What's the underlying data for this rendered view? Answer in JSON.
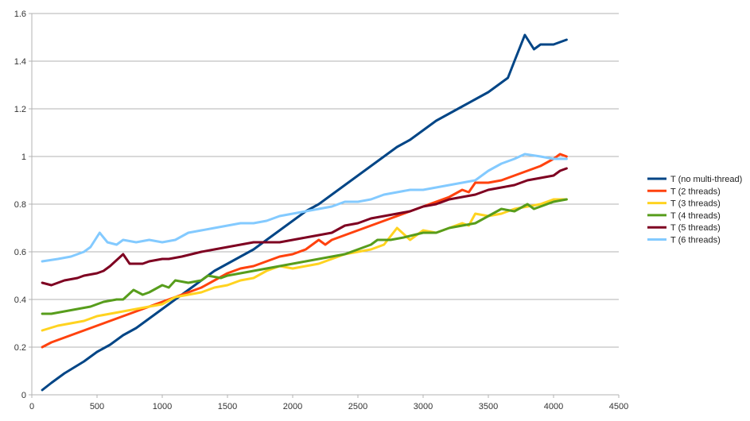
{
  "chart_data": {
    "type": "line",
    "title": "",
    "xlabel": "",
    "ylabel": "",
    "xlim": [
      0,
      4500
    ],
    "ylim": [
      0,
      1.6
    ],
    "xticks": [
      0,
      500,
      1000,
      1500,
      2000,
      2500,
      3000,
      3500,
      4000,
      4500
    ],
    "yticks": [
      0,
      0.2,
      0.4,
      0.6,
      0.8,
      1,
      1.2,
      1.4,
      1.6
    ],
    "xtick_labels": [
      "0",
      "500",
      "1000",
      "1500",
      "2000",
      "2500",
      "3000",
      "3500",
      "4000",
      "4500"
    ],
    "ytick_labels": [
      "0",
      "0.2",
      "0.4",
      "0.6",
      "0.8",
      "1",
      "1.2",
      "1.4",
      "1.6"
    ],
    "grid": "horizontal",
    "legend_position": "right",
    "x": [
      100,
      500,
      1000,
      1500,
      2000,
      2500,
      3000,
      3500,
      3600,
      3700,
      3780,
      3850,
      3900,
      4000,
      4100
    ],
    "series": [
      {
        "name": "T (no multi-thread)",
        "color": "#004586",
        "points": [
          [
            80,
            0.02
          ],
          [
            150,
            0.05
          ],
          [
            250,
            0.09
          ],
          [
            400,
            0.14
          ],
          [
            500,
            0.18
          ],
          [
            600,
            0.21
          ],
          [
            700,
            0.25
          ],
          [
            800,
            0.28
          ],
          [
            850,
            0.3
          ],
          [
            950,
            0.34
          ],
          [
            1050,
            0.38
          ],
          [
            1150,
            0.42
          ],
          [
            1250,
            0.46
          ],
          [
            1350,
            0.5
          ],
          [
            1400,
            0.52
          ],
          [
            1500,
            0.55
          ],
          [
            1600,
            0.58
          ],
          [
            1700,
            0.61
          ],
          [
            1800,
            0.65
          ],
          [
            1900,
            0.69
          ],
          [
            2000,
            0.73
          ],
          [
            2100,
            0.77
          ],
          [
            2200,
            0.8
          ],
          [
            2300,
            0.84
          ],
          [
            2400,
            0.88
          ],
          [
            2500,
            0.92
          ],
          [
            2600,
            0.96
          ],
          [
            2700,
            1.0
          ],
          [
            2800,
            1.04
          ],
          [
            2900,
            1.07
          ],
          [
            3000,
            1.11
          ],
          [
            3100,
            1.15
          ],
          [
            3200,
            1.18
          ],
          [
            3300,
            1.21
          ],
          [
            3400,
            1.24
          ],
          [
            3500,
            1.27
          ],
          [
            3600,
            1.31
          ],
          [
            3650,
            1.33
          ],
          [
            3700,
            1.4
          ],
          [
            3780,
            1.51
          ],
          [
            3850,
            1.45
          ],
          [
            3900,
            1.47
          ],
          [
            4000,
            1.47
          ],
          [
            4050,
            1.48
          ],
          [
            4100,
            1.49
          ]
        ]
      },
      {
        "name": "T (2 threads)",
        "color": "#ff420e",
        "points": [
          [
            80,
            0.2
          ],
          [
            150,
            0.22
          ],
          [
            300,
            0.25
          ],
          [
            400,
            0.27
          ],
          [
            500,
            0.29
          ],
          [
            600,
            0.31
          ],
          [
            700,
            0.33
          ],
          [
            800,
            0.35
          ],
          [
            900,
            0.37
          ],
          [
            1000,
            0.39
          ],
          [
            1100,
            0.41
          ],
          [
            1200,
            0.43
          ],
          [
            1300,
            0.45
          ],
          [
            1400,
            0.48
          ],
          [
            1500,
            0.51
          ],
          [
            1600,
            0.53
          ],
          [
            1700,
            0.54
          ],
          [
            1800,
            0.56
          ],
          [
            1900,
            0.58
          ],
          [
            2000,
            0.59
          ],
          [
            2100,
            0.61
          ],
          [
            2200,
            0.65
          ],
          [
            2250,
            0.63
          ],
          [
            2300,
            0.65
          ],
          [
            2400,
            0.67
          ],
          [
            2500,
            0.69
          ],
          [
            2600,
            0.71
          ],
          [
            2700,
            0.73
          ],
          [
            2800,
            0.75
          ],
          [
            2900,
            0.77
          ],
          [
            3000,
            0.79
          ],
          [
            3100,
            0.81
          ],
          [
            3200,
            0.83
          ],
          [
            3300,
            0.86
          ],
          [
            3350,
            0.85
          ],
          [
            3400,
            0.89
          ],
          [
            3500,
            0.89
          ],
          [
            3600,
            0.9
          ],
          [
            3700,
            0.92
          ],
          [
            3800,
            0.94
          ],
          [
            3900,
            0.96
          ],
          [
            4000,
            0.99
          ],
          [
            4050,
            1.01
          ],
          [
            4100,
            1.0
          ]
        ]
      },
      {
        "name": "T (3 threads)",
        "color": "#ffd320",
        "points": [
          [
            80,
            0.27
          ],
          [
            200,
            0.29
          ],
          [
            300,
            0.3
          ],
          [
            400,
            0.31
          ],
          [
            500,
            0.33
          ],
          [
            600,
            0.34
          ],
          [
            700,
            0.35
          ],
          [
            800,
            0.36
          ],
          [
            900,
            0.37
          ],
          [
            1000,
            0.38
          ],
          [
            1100,
            0.41
          ],
          [
            1200,
            0.42
          ],
          [
            1300,
            0.43
          ],
          [
            1400,
            0.45
          ],
          [
            1500,
            0.46
          ],
          [
            1600,
            0.48
          ],
          [
            1700,
            0.49
          ],
          [
            1800,
            0.52
          ],
          [
            1850,
            0.53
          ],
          [
            1900,
            0.54
          ],
          [
            2000,
            0.53
          ],
          [
            2100,
            0.54
          ],
          [
            2200,
            0.55
          ],
          [
            2300,
            0.57
          ],
          [
            2400,
            0.59
          ],
          [
            2500,
            0.6
          ],
          [
            2600,
            0.61
          ],
          [
            2700,
            0.63
          ],
          [
            2800,
            0.7
          ],
          [
            2900,
            0.65
          ],
          [
            3000,
            0.69
          ],
          [
            3100,
            0.68
          ],
          [
            3200,
            0.7
          ],
          [
            3300,
            0.72
          ],
          [
            3350,
            0.71
          ],
          [
            3400,
            0.76
          ],
          [
            3500,
            0.75
          ],
          [
            3600,
            0.76
          ],
          [
            3700,
            0.78
          ],
          [
            3800,
            0.79
          ],
          [
            3900,
            0.8
          ],
          [
            4000,
            0.82
          ],
          [
            4100,
            0.82
          ]
        ]
      },
      {
        "name": "T (4 threads)",
        "color": "#579d1c",
        "points": [
          [
            80,
            0.34
          ],
          [
            150,
            0.34
          ],
          [
            250,
            0.35
          ],
          [
            350,
            0.36
          ],
          [
            450,
            0.37
          ],
          [
            550,
            0.39
          ],
          [
            650,
            0.4
          ],
          [
            700,
            0.4
          ],
          [
            780,
            0.44
          ],
          [
            850,
            0.42
          ],
          [
            900,
            0.43
          ],
          [
            1000,
            0.46
          ],
          [
            1050,
            0.45
          ],
          [
            1100,
            0.48
          ],
          [
            1200,
            0.47
          ],
          [
            1300,
            0.48
          ],
          [
            1350,
            0.5
          ],
          [
            1450,
            0.49
          ],
          [
            1500,
            0.5
          ],
          [
            1600,
            0.51
          ],
          [
            1700,
            0.52
          ],
          [
            1800,
            0.53
          ],
          [
            1900,
            0.54
          ],
          [
            2000,
            0.55
          ],
          [
            2100,
            0.56
          ],
          [
            2200,
            0.57
          ],
          [
            2300,
            0.58
          ],
          [
            2400,
            0.59
          ],
          [
            2500,
            0.61
          ],
          [
            2600,
            0.63
          ],
          [
            2650,
            0.65
          ],
          [
            2750,
            0.65
          ],
          [
            2850,
            0.66
          ],
          [
            3000,
            0.68
          ],
          [
            3100,
            0.68
          ],
          [
            3200,
            0.7
          ],
          [
            3300,
            0.71
          ],
          [
            3400,
            0.72
          ],
          [
            3500,
            0.75
          ],
          [
            3600,
            0.78
          ],
          [
            3700,
            0.77
          ],
          [
            3800,
            0.8
          ],
          [
            3850,
            0.78
          ],
          [
            3900,
            0.79
          ],
          [
            4000,
            0.81
          ],
          [
            4100,
            0.82
          ]
        ]
      },
      {
        "name": "T (5 threads)",
        "color": "#7e0021",
        "points": [
          [
            80,
            0.47
          ],
          [
            150,
            0.46
          ],
          [
            250,
            0.48
          ],
          [
            350,
            0.49
          ],
          [
            400,
            0.5
          ],
          [
            500,
            0.51
          ],
          [
            550,
            0.52
          ],
          [
            600,
            0.54
          ],
          [
            700,
            0.59
          ],
          [
            750,
            0.55
          ],
          [
            850,
            0.55
          ],
          [
            900,
            0.56
          ],
          [
            1000,
            0.57
          ],
          [
            1050,
            0.57
          ],
          [
            1150,
            0.58
          ],
          [
            1300,
            0.6
          ],
          [
            1400,
            0.61
          ],
          [
            1500,
            0.62
          ],
          [
            1600,
            0.63
          ],
          [
            1700,
            0.64
          ],
          [
            1800,
            0.64
          ],
          [
            1900,
            0.64
          ],
          [
            2000,
            0.65
          ],
          [
            2100,
            0.66
          ],
          [
            2200,
            0.67
          ],
          [
            2300,
            0.68
          ],
          [
            2400,
            0.71
          ],
          [
            2500,
            0.72
          ],
          [
            2600,
            0.74
          ],
          [
            2700,
            0.75
          ],
          [
            2800,
            0.76
          ],
          [
            2900,
            0.77
          ],
          [
            3000,
            0.79
          ],
          [
            3100,
            0.8
          ],
          [
            3200,
            0.82
          ],
          [
            3300,
            0.83
          ],
          [
            3400,
            0.84
          ],
          [
            3500,
            0.86
          ],
          [
            3600,
            0.87
          ],
          [
            3700,
            0.88
          ],
          [
            3800,
            0.9
          ],
          [
            3900,
            0.91
          ],
          [
            4000,
            0.92
          ],
          [
            4050,
            0.94
          ],
          [
            4100,
            0.95
          ]
        ]
      },
      {
        "name": "T (6 threads)",
        "color": "#83caff",
        "points": [
          [
            80,
            0.56
          ],
          [
            200,
            0.57
          ],
          [
            300,
            0.58
          ],
          [
            400,
            0.6
          ],
          [
            450,
            0.62
          ],
          [
            520,
            0.68
          ],
          [
            580,
            0.64
          ],
          [
            650,
            0.63
          ],
          [
            700,
            0.65
          ],
          [
            800,
            0.64
          ],
          [
            900,
            0.65
          ],
          [
            1000,
            0.64
          ],
          [
            1100,
            0.65
          ],
          [
            1200,
            0.68
          ],
          [
            1300,
            0.69
          ],
          [
            1400,
            0.7
          ],
          [
            1500,
            0.71
          ],
          [
            1600,
            0.72
          ],
          [
            1700,
            0.72
          ],
          [
            1800,
            0.73
          ],
          [
            1900,
            0.75
          ],
          [
            2000,
            0.76
          ],
          [
            2100,
            0.77
          ],
          [
            2200,
            0.78
          ],
          [
            2300,
            0.79
          ],
          [
            2400,
            0.81
          ],
          [
            2500,
            0.81
          ],
          [
            2600,
            0.82
          ],
          [
            2700,
            0.84
          ],
          [
            2800,
            0.85
          ],
          [
            2900,
            0.86
          ],
          [
            3000,
            0.86
          ],
          [
            3100,
            0.87
          ],
          [
            3200,
            0.88
          ],
          [
            3300,
            0.89
          ],
          [
            3400,
            0.9
          ],
          [
            3500,
            0.94
          ],
          [
            3600,
            0.97
          ],
          [
            3700,
            0.99
          ],
          [
            3780,
            1.01
          ],
          [
            3900,
            1.0
          ],
          [
            4000,
            0.99
          ],
          [
            4100,
            0.99
          ]
        ]
      }
    ]
  }
}
